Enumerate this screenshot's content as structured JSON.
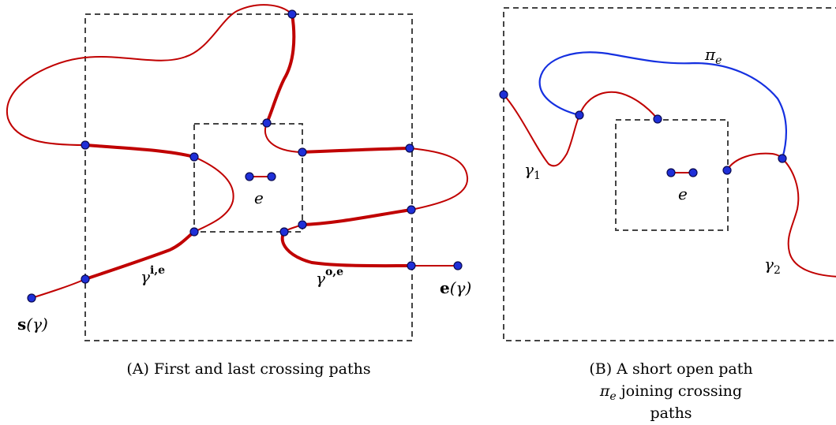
{
  "colors": {
    "path_red": "#c00000",
    "path_blue": "#1530e0",
    "point_blue": "#1f2fd8",
    "box_dash": "#444444"
  },
  "panel_a": {
    "caption": "(A) First and last crossing paths",
    "edge_label": "e",
    "gamma_in_base": "γ",
    "gamma_in_sup": "i,e",
    "gamma_out_base": "γ",
    "gamma_out_sup": "o,e",
    "start_bold": "s",
    "start_arg": "(γ)",
    "end_bold": "e",
    "end_arg": "(γ)"
  },
  "panel_b": {
    "caption_line1": "(B) A short open path",
    "caption_line2": "π",
    "caption_line2_sub": "e",
    "caption_line2_rest": " joining crossing",
    "caption_line3": "paths",
    "edge_label": "e",
    "pi_base": "π",
    "pi_sub": "e",
    "gamma1_base": "γ",
    "gamma1_sub": "1",
    "gamma2_base": "γ",
    "gamma2_sub": "2"
  }
}
